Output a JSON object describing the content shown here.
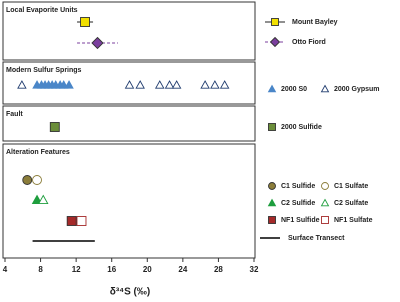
{
  "chart_data": {
    "type": "strip",
    "xlabel": "δ³⁴S (‰)",
    "xlim": [
      4,
      32
    ],
    "xticks": [
      4,
      8,
      12,
      16,
      20,
      24,
      28,
      32
    ],
    "panels": [
      {
        "title": "Local Evaporite Units",
        "series": [
          {
            "name": "Mount Bayley",
            "marker": "square",
            "color": "#f2e000",
            "filled": true,
            "dashed": false,
            "values": [
              13.0
            ],
            "errors": [
              0.9
            ]
          },
          {
            "name": "Otto Fiord",
            "marker": "diamond",
            "color": "#7b3f9e",
            "filled": true,
            "dashed": true,
            "values": [
              14.4
            ],
            "errors": [
              2.3
            ]
          }
        ]
      },
      {
        "title": "Modern Sulfur Springs",
        "series": [
          {
            "name": "2000 S0",
            "marker": "triangle",
            "color": "#4a86c8",
            "filled": true,
            "values": [
              7.6,
              8.1,
              8.5,
              8.9,
              9.3,
              9.7,
              10.2,
              10.6,
              11.2
            ]
          },
          {
            "name": "2000 Gypsum",
            "marker": "triangle",
            "color": "#1f3b6e",
            "filled": false,
            "values": [
              5.9,
              18.0,
              19.2,
              21.4,
              22.5,
              23.3,
              26.5,
              27.6,
              28.7
            ]
          }
        ]
      },
      {
        "title": "Fault",
        "series": [
          {
            "name": "2000 Sulfide",
            "marker": "square",
            "color": "#6b8e3a",
            "filled": true,
            "values": [
              9.6
            ]
          }
        ]
      },
      {
        "title": "Alteration Features",
        "series": [
          {
            "name": "C1 Sulfide",
            "marker": "circle",
            "color": "#8b7d3a",
            "filled": true,
            "values": [
              6.5
            ]
          },
          {
            "name": "C1 Sulfate",
            "marker": "circle",
            "color": "#8b7d3a",
            "filled": false,
            "values": [
              7.6
            ]
          },
          {
            "name": "C2 Sulfide",
            "marker": "triangle",
            "color": "#1e9e3e",
            "filled": true,
            "values": [
              7.6
            ]
          },
          {
            "name": "C2 Sulfate",
            "marker": "triangle",
            "color": "#1e9e3e",
            "filled": false,
            "values": [
              8.3
            ]
          },
          {
            "name": "NF1 Sulfide",
            "marker": "square",
            "color": "#a52a2a",
            "filled": true,
            "values": [
              11.5
            ]
          },
          {
            "name": "NF1 Sulfate",
            "marker": "square",
            "color": "#a52a2a",
            "filled": false,
            "values": [
              12.6
            ]
          },
          {
            "name": "Surface Transect",
            "marker": "line",
            "color": "#000000",
            "filled": true,
            "values": [
              7.1,
              14.1
            ]
          }
        ]
      }
    ]
  }
}
